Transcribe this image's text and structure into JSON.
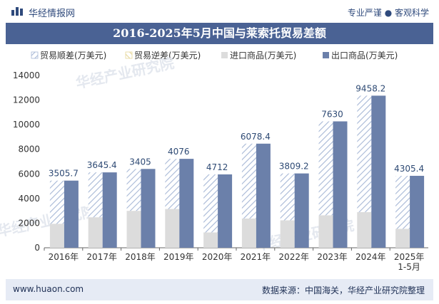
{
  "header": {
    "brand": "华经情报网",
    "slogan": "专业严谨 ● 客观科学"
  },
  "title": "2016-2025年5月中国与莱索托贸易差额",
  "footer": {
    "site": "www.huaon.com",
    "source": "数据来源：中国海关，华经产业研究院整理"
  },
  "watermark": "华经产业研究院",
  "colors": {
    "brand": "#4a6294",
    "export": "#6b80aa",
    "import": "#dcdcdc",
    "surplus_hatch": "#9fb2d4",
    "label": "#2e4a74"
  },
  "chart_data": {
    "type": "bar",
    "categories": [
      "2016年",
      "2017年",
      "2018年",
      "2019年",
      "2020年",
      "2021年",
      "2022年",
      "2023年",
      "2024年",
      "2025年\n1-5月"
    ],
    "series": [
      {
        "name": "贸易顺差(万美元)",
        "values": [
          3505.7,
          3645.4,
          3405,
          4076,
          4712,
          6078.4,
          3809.2,
          7630,
          9458.2,
          4305.4
        ]
      },
      {
        "name": "贸易逆差(万美元)",
        "values": [
          0,
          0,
          0,
          0,
          0,
          0,
          0,
          0,
          0,
          0
        ]
      },
      {
        "name": "进口商品(万美元)",
        "values": [
          1950,
          2480,
          3000,
          3150,
          1250,
          2380,
          2230,
          2640,
          2900,
          1540
        ]
      },
      {
        "name": "出口商品(万美元)",
        "values": [
          5455.7,
          6125.4,
          6405,
          7226,
          5962,
          8458.4,
          6039.2,
          10270,
          12358.2,
          5845.4
        ]
      }
    ],
    "data_labels": [
      "3505.7",
      "3645.4",
      "3405",
      "4076",
      "4712",
      "6078.4",
      "3809.2",
      "7630",
      "9458.2",
      "4305.4"
    ],
    "ylim": [
      0,
      14000
    ],
    "yticks": [
      0,
      2000,
      4000,
      6000,
      8000,
      10000,
      12000,
      14000
    ],
    "grid": false,
    "legend": "top"
  }
}
